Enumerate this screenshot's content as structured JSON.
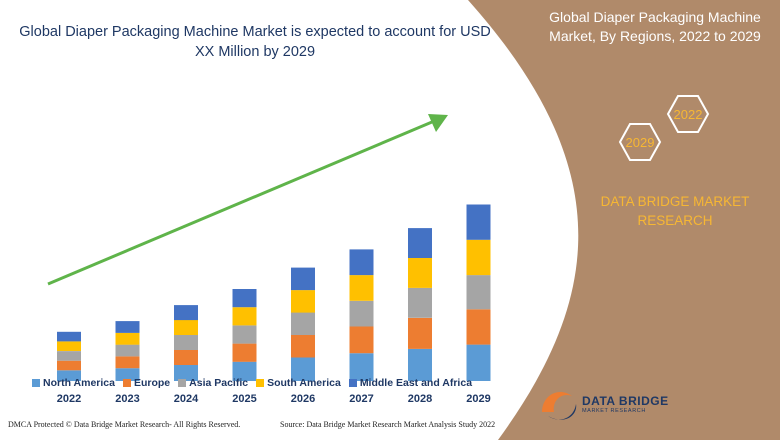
{
  "header": {
    "title": "Global Diaper Packaging Machine Market is expected to account for USD XX Million by 2029"
  },
  "side_panel": {
    "title": "Global Diaper Packaging Machine Market, By Regions, 2022 to 2029",
    "badge_start": "2022",
    "badge_end": "2029",
    "brand": "DATA BRIDGE MARKET RESEARCH"
  },
  "footer": {
    "left": "DMCA Protected © Data Bridge Market Research- All Rights Reserved.",
    "right": "Source: Data Bridge Market Research Market Analysis Study 2022"
  },
  "logo": {
    "line1": "DATA BRIDGE",
    "line2": "MARKET RESEARCH"
  },
  "colors": {
    "north_america": "#5b9bd5",
    "europe": "#ed7d31",
    "asia_pacific": "#a5a5a5",
    "south_america": "#ffc000",
    "middle_east_africa": "#4472c4",
    "panel": "#b08a6a",
    "arrow": "#5fb44a"
  },
  "chart_data": {
    "type": "bar",
    "stacked": true,
    "categories": [
      "2022",
      "2023",
      "2024",
      "2025",
      "2026",
      "2027",
      "2028",
      "2029"
    ],
    "series": [
      {
        "name": "North America",
        "values": [
          10,
          12,
          15,
          18,
          22,
          26,
          30,
          34
        ]
      },
      {
        "name": "Europe",
        "values": [
          9,
          11,
          14,
          17,
          21,
          25,
          29,
          33
        ]
      },
      {
        "name": "Asia Pacific",
        "values": [
          9,
          11,
          14,
          17,
          21,
          24,
          28,
          32
        ]
      },
      {
        "name": "South America",
        "values": [
          9,
          11,
          14,
          17,
          21,
          24,
          28,
          33
        ]
      },
      {
        "name": "Middle East and Africa",
        "values": [
          9,
          11,
          14,
          17,
          21,
          24,
          28,
          33
        ]
      }
    ],
    "ylim": [
      0,
      230
    ],
    "grid": false,
    "legend_position": "bottom"
  }
}
